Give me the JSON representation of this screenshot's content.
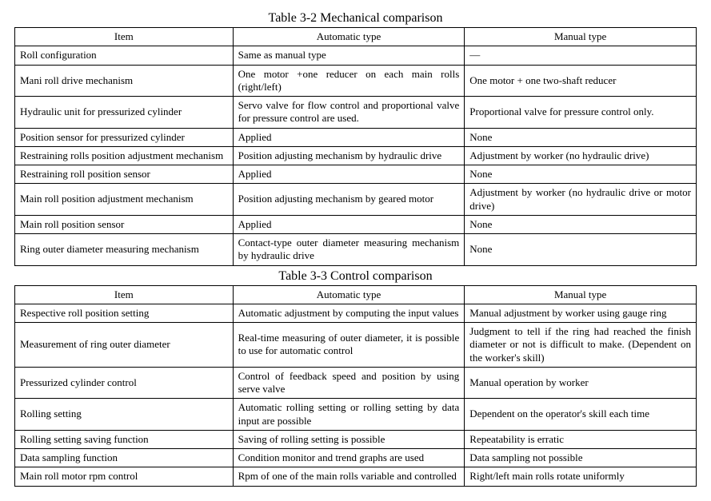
{
  "tables": [
    {
      "title": "Table 3-2 Mechanical comparison",
      "columns": [
        "Item",
        "Automatic type",
        "Manual type"
      ],
      "rows": [
        [
          "Roll configuration",
          "Same as manual type",
          "—"
        ],
        [
          "Mani roll drive mechanism",
          "One motor +one reducer on each main rolls (right/left)",
          "One motor + one two-shaft reducer"
        ],
        [
          "Hydraulic unit for pressurized cylinder",
          "Servo valve for flow control and proportional valve for pressure control are used.",
          "Proportional valve for pressure control only."
        ],
        [
          "Position sensor for pressurized cylinder",
          "Applied",
          "None"
        ],
        [
          "Restraining rolls position adjustment mechanism",
          "Position adjusting mechanism by hydraulic drive",
          "Adjustment by worker (no hydraulic drive)"
        ],
        [
          "Restraining roll position sensor",
          "Applied",
          "None"
        ],
        [
          "Main roll position adjustment mechanism",
          "Position adjusting mechanism by geared motor",
          "Adjustment by worker (no hydraulic drive or motor drive)"
        ],
        [
          "Main roll position sensor",
          "Applied",
          "None"
        ],
        [
          "Ring outer diameter measuring mechanism",
          "Contact-type outer diameter measuring mechanism by hydraulic drive",
          "None"
        ]
      ]
    },
    {
      "title": "Table 3-3 Control comparison",
      "columns": [
        "Item",
        "Automatic type",
        "Manual type"
      ],
      "rows": [
        [
          "Respective roll position setting",
          "Automatic adjustment by computing the input values",
          "Manual adjustment by worker using gauge ring"
        ],
        [
          "Measurement of ring outer diameter",
          "Real-time measuring of outer diameter, it is possible to use for automatic control",
          "Judgment to tell if the ring had reached the finish diameter or not is difficult to make. (Dependent on the worker's skill)"
        ],
        [
          "Pressurized cylinder control",
          "Control of feedback speed and position by using serve valve",
          "Manual operation by worker"
        ],
        [
          "Rolling setting",
          "Automatic rolling setting or rolling setting by data input are possible",
          "Dependent on the operator's skill each time"
        ],
        [
          "Rolling setting saving function",
          "Saving of rolling setting is possible",
          "Repeatability is erratic"
        ],
        [
          "Data sampling function",
          "Condition monitor and trend graphs are used",
          "Data sampling not possible"
        ],
        [
          "Main roll motor rpm control",
          "Rpm of one of the main rolls variable and controlled",
          "Right/left main rolls rotate uniformly"
        ]
      ]
    }
  ],
  "style": {
    "font_family": "Times New Roman",
    "title_fontsize_pt": 16,
    "cell_fontsize_pt": 13,
    "border_color": "#000000",
    "background_color": "#ffffff",
    "text_color": "#000000",
    "col_widths_pct": [
      32,
      34,
      34
    ]
  }
}
